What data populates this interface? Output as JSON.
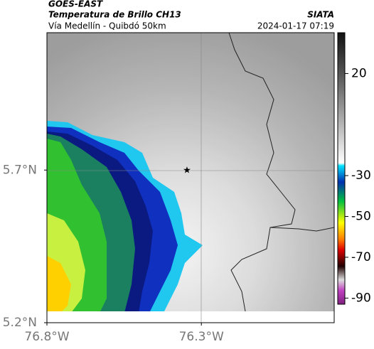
{
  "header": {
    "source": "GOES-EAST",
    "product": "Temperatura de Brillo CH13",
    "region": "Vía Medellín - Quibdó 50km",
    "agency": "SIATA",
    "timestamp": "2024-01-17 07:19"
  },
  "map": {
    "lonlim": [
      -76.8,
      -75.87
    ],
    "latlim": [
      5.2,
      6.15
    ],
    "lon_ticks": [
      {
        "value": -76.8,
        "label": "76.8°W"
      },
      {
        "value": -76.3,
        "label": "76.3°W"
      }
    ],
    "lat_ticks": [
      {
        "value": 5.7,
        "label": "5.7°N"
      },
      {
        "value": 5.2,
        "label": "5.2°N"
      }
    ]
  },
  "colorbar": {
    "lim": [
      -93,
      40
    ],
    "ticks": [
      20,
      -30,
      -50,
      -70,
      -90
    ]
  }
}
